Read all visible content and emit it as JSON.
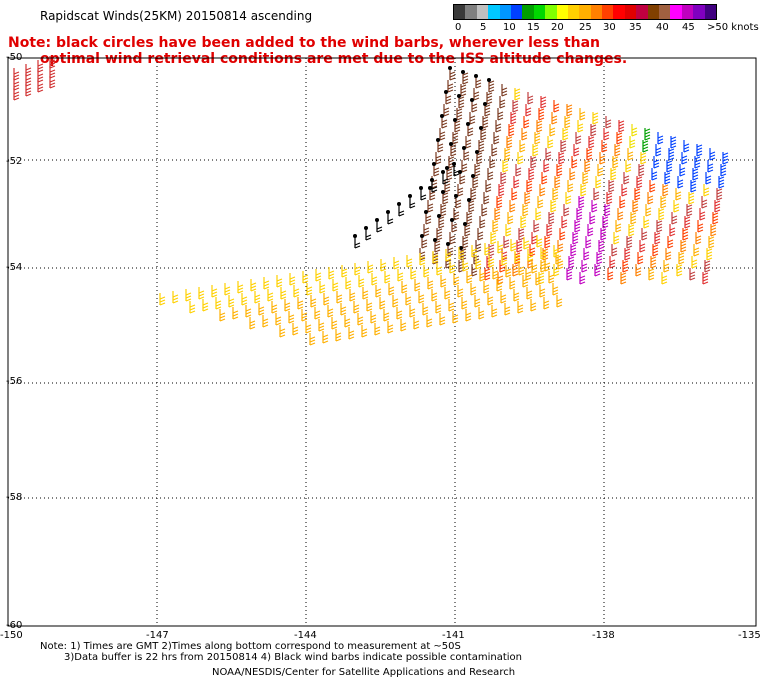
{
  "title": "Rapidscat Winds(25KM) 20150814 ascending",
  "note_lines": [
    "Note: black circles have been added to the wind barbs, wherever less than",
    "optimal wind retrieval conditions are met due to the ISS altitude changes."
  ],
  "legend": {
    "labels": [
      "0",
      "5",
      "10",
      "15",
      "20",
      "25",
      "30",
      "35",
      "40",
      "45",
      ">50 knots"
    ],
    "colors": [
      "#3a3a3a",
      "#808080",
      "#c0c0c0",
      "#00c8ff",
      "#0096ff",
      "#0040ff",
      "#00a000",
      "#00d800",
      "#80ff00",
      "#ffff00",
      "#ffd000",
      "#ffb000",
      "#ff8000",
      "#ff4000",
      "#ff0000",
      "#e00000",
      "#c00040",
      "#804000",
      "#a06040",
      "#ff00ff",
      "#c000c0",
      "#8000c0",
      "#400080"
    ]
  },
  "axes": {
    "lat_labels": [
      "-50",
      "-52",
      "-54",
      "-56",
      "-58",
      "-60"
    ],
    "lon_labels": [
      "-150",
      "-147",
      "-144",
      "-141",
      "-138",
      "-135"
    ]
  },
  "footer": {
    "line1": "Note: 1) Times are GMT 2)Times along bottom correspond to measurement at ~50S",
    "line2": "3)Data buffer is 22 hrs from 20150814 4) Black wind barbs indicate possible contamination",
    "line3": "NOAA/NESDIS/Center for Satellite Applications and Research"
  }
}
